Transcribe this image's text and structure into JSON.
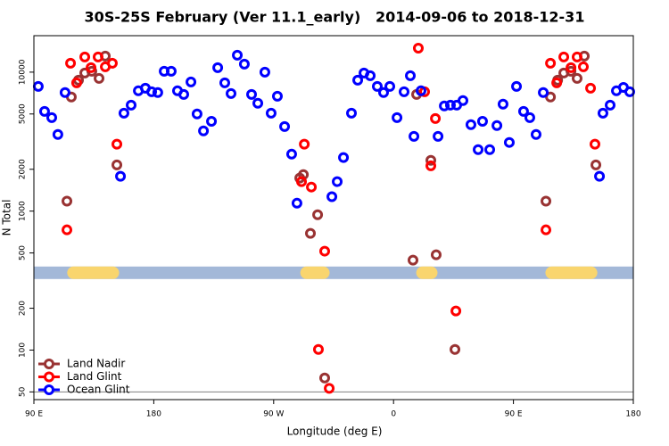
{
  "chart_data": {
    "type": "scatter",
    "title": "30S-25S February (Ver 11.1_early)   2014-09-06 to 2018-12-31",
    "x_label": "Longitude (deg E)",
    "y_label": "N Total",
    "log_y": true,
    "xlim": [
      90,
      540
    ],
    "ylim": [
      44,
      18300
    ],
    "xticks": [
      {
        "value": 90,
        "label": "90 E"
      },
      180,
      {
        "value": 270,
        "label": "90 W"
      },
      {
        "value": 360,
        "label": "0"
      },
      {
        "value": 450,
        "label": "90 E"
      },
      {
        "value": 540,
        "label": "180"
      }
    ],
    "yticks": [
      50,
      100,
      200,
      500,
      1000,
      2000,
      5000,
      10000
    ],
    "legend": "bottom-left",
    "reference_line": {
      "value": 50,
      "color": "#808080"
    },
    "surface_band": {
      "value": 360,
      "color": "#a3b8d8",
      "land_color": "#f9d56e",
      "land": [
        [
          115,
          154
        ],
        [
          290,
          312
        ],
        [
          377,
          393
        ],
        [
          474,
          513
        ]
      ]
    },
    "series": [
      {
        "name": "Land Nadir",
        "color": "#993333",
        "x": [
          114.8,
          118.1,
          123.5,
          128.2,
          133.5,
          138.9,
          143.6,
          152.3,
          289.6,
          292.3,
          297.6,
          303,
          308.3,
          374.6,
          377.3,
          388,
          392,
          406.1,
          474.4,
          477.8,
          483.2,
          487.8,
          493.2,
          497.8,
          503.2,
          511.9
        ],
        "values": [
          1180,
          6620,
          8760,
          9860,
          10150,
          9020,
          13040,
          2150,
          1730,
          1830,
          692,
          942,
          63,
          444,
          6910,
          2320,
          485,
          101,
          1180,
          6620,
          8760,
          9860,
          10150,
          9020,
          13040,
          2150
        ]
      },
      {
        "name": "Land Glint",
        "color": "#ff0000",
        "x": [
          114.8,
          117.5,
          122.1,
          128.2,
          132.9,
          138.2,
          143.6,
          148.9,
          152.3,
          290.9,
          293,
          298.3,
          308.3,
          303.6,
          311.7,
          378.6,
          383.3,
          388,
          391.4,
          406.8,
          474.4,
          477.8,
          482.5,
          487.8,
          493.2,
          497.8,
          502.5,
          507.9,
          511.2
        ],
        "values": [
          733,
          11590,
          8380,
          12850,
          10770,
          12850,
          10920,
          11590,
          3030,
          1630,
          3030,
          1490,
          515,
          101,
          53,
          14890,
          7220,
          2120,
          4640,
          191,
          733,
          11590,
          8380,
          12850,
          10770,
          12850,
          10920,
          7670,
          3030
        ]
      },
      {
        "name": "Ocean Glint",
        "color": "#0000ff",
        "x": [
          93.3,
          98,
          103.4,
          108,
          113.4,
          155,
          157.6,
          163,
          168.4,
          173.7,
          178.4,
          183,
          187.8,
          193.1,
          197.8,
          202.5,
          207.9,
          212.5,
          217.3,
          223.3,
          228,
          233.3,
          238,
          242.7,
          248,
          253.4,
          258.1,
          263.4,
          268.1,
          272.8,
          278.2,
          283.5,
          287.5,
          313.7,
          317.7,
          322.4,
          328.4,
          333.1,
          337.8,
          342.5,
          347.8,
          352.5,
          357.2,
          362.6,
          367.9,
          372.6,
          375.3,
          380.6,
          393.4,
          398.1,
          402.7,
          407.4,
          412.1,
          418.1,
          423.5,
          426.8,
          432.2,
          437.6,
          442.2,
          446.9,
          452.3,
          457.6,
          462.3,
          467,
          472.4,
          514.6,
          517.2,
          522.6,
          527.3,
          532.6,
          537.3
        ],
        "values": [
          7900,
          5220,
          4710,
          3560,
          7130,
          1780,
          5070,
          5790,
          7340,
          7670,
          7220,
          7130,
          10150,
          10150,
          7340,
          6910,
          8500,
          5000,
          3780,
          4430,
          10770,
          8380,
          7020,
          13240,
          11420,
          6910,
          5970,
          10000,
          5070,
          6710,
          4060,
          2570,
          1140,
          1270,
          1630,
          2430,
          5070,
          8760,
          9860,
          9420,
          7900,
          7130,
          7900,
          4710,
          7220,
          9420,
          3450,
          7340,
          3450,
          5710,
          5790,
          5790,
          6240,
          4190,
          2770,
          4430,
          2770,
          4130,
          5890,
          3120,
          7900,
          5220,
          4710,
          3560,
          7130,
          1780,
          5070,
          5790,
          7340,
          7760,
          7220
        ]
      }
    ]
  }
}
